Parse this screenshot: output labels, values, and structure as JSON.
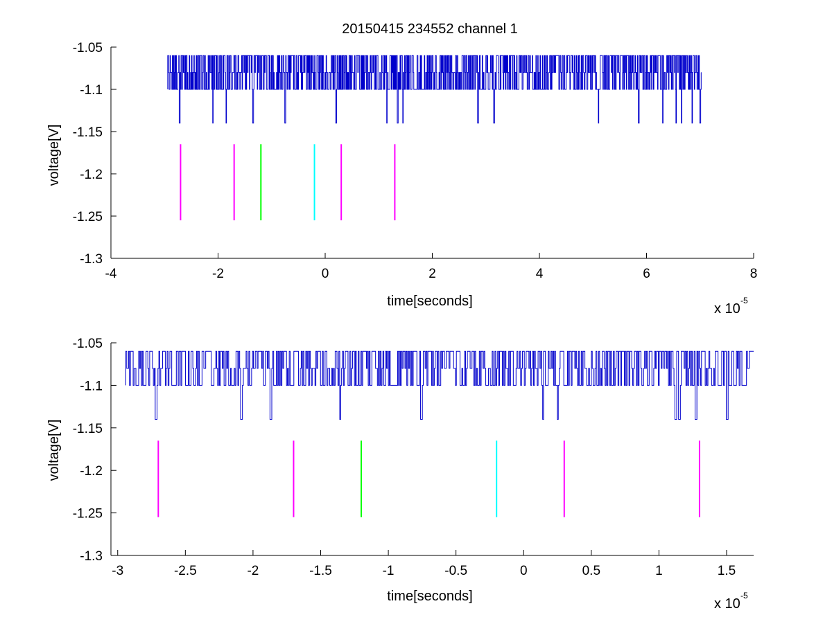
{
  "chart_data": [
    {
      "type": "line",
      "title": "20150415 234552 channel 1",
      "xlabel": "time[seconds]",
      "ylabel": "voltage[V]",
      "x_exponent_label": "x 10",
      "x_exponent": "-5",
      "xlim": [
        -4,
        8
      ],
      "ylim": [
        -1.3,
        -1.05
      ],
      "xticks": [
        -4,
        -2,
        0,
        2,
        4,
        6,
        8
      ],
      "xtick_labels": [
        "-4",
        "-2",
        "0",
        "2",
        "4",
        "6",
        "8"
      ],
      "yticks": [
        -1.05,
        -1.1,
        -1.15,
        -1.2,
        -1.25,
        -1.3
      ],
      "ytick_labels": [
        "-1.05",
        "-1.1",
        "-1.15",
        "-1.2",
        "-1.25",
        "-1.3"
      ],
      "grid": false,
      "signal": {
        "color": "#0000cc",
        "x_range": [
          -2.94,
          7.02
        ],
        "baseline": -1.1,
        "levels": [
          -1.06,
          -1.08,
          -1.1
        ],
        "dips": [
          {
            "x": -2.72,
            "y": -1.14
          },
          {
            "x": -2.1,
            "y": -1.14
          },
          {
            "x": -1.85,
            "y": -1.14
          },
          {
            "x": -1.35,
            "y": -1.14
          },
          {
            "x": -0.75,
            "y": -1.14
          },
          {
            "x": 0.2,
            "y": -1.14
          },
          {
            "x": 1.15,
            "y": -1.14
          },
          {
            "x": 1.35,
            "y": -1.14
          },
          {
            "x": 1.45,
            "y": -1.14
          },
          {
            "x": 2.85,
            "y": -1.14
          },
          {
            "x": 3.15,
            "y": -1.14
          },
          {
            "x": 5.1,
            "y": -1.14
          },
          {
            "x": 5.85,
            "y": -1.14
          },
          {
            "x": 6.3,
            "y": -1.14
          },
          {
            "x": 6.55,
            "y": -1.14
          },
          {
            "x": 6.65,
            "y": -1.14
          },
          {
            "x": 6.85,
            "y": -1.14
          },
          {
            "x": 7.0,
            "y": -1.14
          }
        ]
      },
      "markers": [
        {
          "x": -2.7,
          "y0": -1.165,
          "y1": -1.255,
          "color": "#ff00ff"
        },
        {
          "x": -1.7,
          "y0": -1.165,
          "y1": -1.255,
          "color": "#ff00ff"
        },
        {
          "x": -1.2,
          "y0": -1.165,
          "y1": -1.255,
          "color": "#00ff00"
        },
        {
          "x": -0.2,
          "y0": -1.165,
          "y1": -1.255,
          "color": "#00ffff"
        },
        {
          "x": 0.3,
          "y0": -1.165,
          "y1": -1.255,
          "color": "#ff00ff"
        },
        {
          "x": 1.3,
          "y0": -1.165,
          "y1": -1.255,
          "color": "#ff00ff"
        }
      ]
    },
    {
      "type": "line",
      "title": "",
      "xlabel": "time[seconds]",
      "ylabel": "voltage[V]",
      "x_exponent_label": "x 10",
      "x_exponent": "-5",
      "xlim": [
        -3.05,
        1.7
      ],
      "ylim": [
        -1.3,
        -1.05
      ],
      "xticks": [
        -3,
        -2.5,
        -2,
        -1.5,
        -1,
        -0.5,
        0,
        0.5,
        1,
        1.5
      ],
      "xtick_labels": [
        "-3",
        "-2.5",
        "-2",
        "-1.5",
        "-1",
        "-0.5",
        "0",
        "0.5",
        "1",
        "1.5"
      ],
      "yticks": [
        -1.05,
        -1.1,
        -1.15,
        -1.2,
        -1.25,
        -1.3
      ],
      "ytick_labels": [
        "-1.05",
        "-1.1",
        "-1.15",
        "-1.2",
        "-1.25",
        "-1.3"
      ],
      "grid": false,
      "signal": {
        "color": "#0000cc",
        "x_range": [
          -2.94,
          1.7
        ],
        "baseline": -1.1,
        "levels": [
          -1.06,
          -1.08,
          -1.1
        ],
        "dips": [
          {
            "x": -2.72,
            "y": -1.14
          },
          {
            "x": -2.09,
            "y": -1.14
          },
          {
            "x": -1.87,
            "y": -1.14
          },
          {
            "x": -1.36,
            "y": -1.14
          },
          {
            "x": -0.76,
            "y": -1.14
          },
          {
            "x": 0.14,
            "y": -1.14
          },
          {
            "x": 0.25,
            "y": -1.14
          },
          {
            "x": 1.12,
            "y": -1.14
          },
          {
            "x": 1.15,
            "y": -1.14
          },
          {
            "x": 1.27,
            "y": -1.14
          },
          {
            "x": 1.5,
            "y": -1.14
          }
        ]
      },
      "markers": [
        {
          "x": -2.7,
          "y0": -1.165,
          "y1": -1.255,
          "color": "#ff00ff"
        },
        {
          "x": -1.7,
          "y0": -1.165,
          "y1": -1.255,
          "color": "#ff00ff"
        },
        {
          "x": -1.2,
          "y0": -1.165,
          "y1": -1.255,
          "color": "#00ff00"
        },
        {
          "x": -0.2,
          "y0": -1.165,
          "y1": -1.255,
          "color": "#00ffff"
        },
        {
          "x": 0.3,
          "y0": -1.165,
          "y1": -1.255,
          "color": "#ff00ff"
        },
        {
          "x": 1.3,
          "y0": -1.165,
          "y1": -1.255,
          "color": "#ff00ff"
        }
      ]
    }
  ]
}
